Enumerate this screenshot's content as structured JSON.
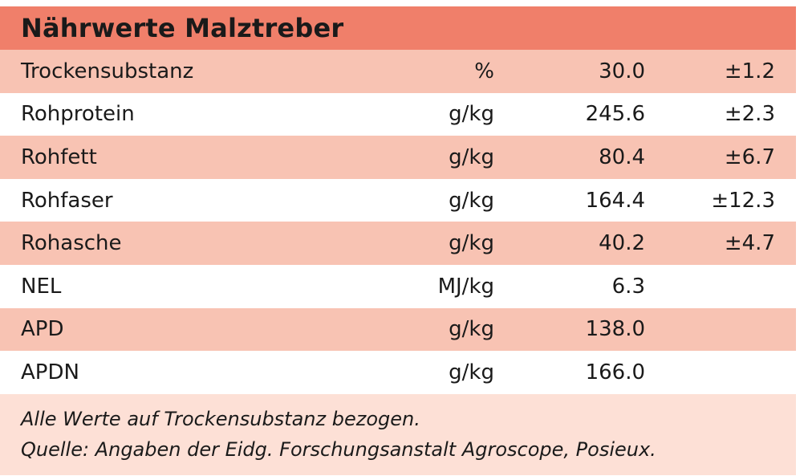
{
  "title": "Nährwerte Malztreber",
  "rows": [
    {
      "name": "Trockensubstanz",
      "unit": "%",
      "value": "30.0",
      "dev": "±1.2"
    },
    {
      "name": "Rohprotein",
      "unit": "g/kg",
      "value": "245.6",
      "dev": "±2.3"
    },
    {
      "name": "Rohfett",
      "unit": "g/kg",
      "value": "80.4",
      "dev": "±6.7"
    },
    {
      "name": "Rohfaser",
      "unit": "g/kg",
      "value": "164.4",
      "dev": "±12.3"
    },
    {
      "name": "Rohasche",
      "unit": "g/kg",
      "value": "40.2",
      "dev": "±4.7"
    },
    {
      "name": "NEL",
      "unit": "MJ/kg",
      "value": "6.3",
      "dev": ""
    },
    {
      "name": "APD",
      "unit": "g/kg",
      "value": "138.0",
      "dev": ""
    },
    {
      "name": "APDN",
      "unit": "g/kg",
      "value": "166.0",
      "dev": ""
    }
  ],
  "notes": {
    "line1": "Alle Werte auf Trockensubstanz bezogen.",
    "line2": "Quelle: Angaben der Eidg. Forschungsanstalt Agroscope, Posieux."
  },
  "colors": {
    "header": "#f07f6a",
    "shaded_row": "#f8c3b3",
    "plain_row": "#ffffff",
    "notes_bg": "#fde0d6"
  }
}
